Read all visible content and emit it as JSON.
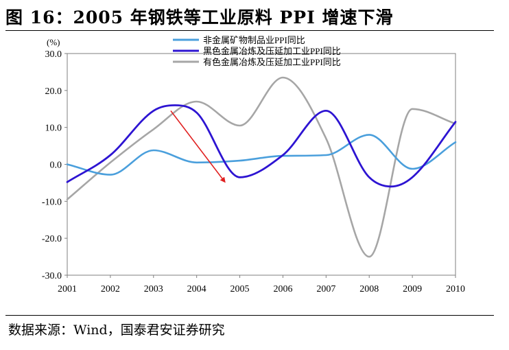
{
  "header": {
    "title": "图 16：2005 年钢铁等工业原料 PPI 增速下滑"
  },
  "footer": {
    "source": "数据来源：Wind，国泰君安证券研究"
  },
  "chart_data": {
    "type": "line",
    "title": "图 16：2005 年钢铁等工业原料 PPI 增速下滑",
    "ylabel": "(%)",
    "xlabel": "",
    "ylim": [
      -30,
      30
    ],
    "y_ticks": [
      30,
      20,
      10,
      0,
      -10,
      -20,
      -30
    ],
    "y_tick_labels": [
      "30.0",
      "20.0",
      "10.0",
      "0.0",
      "-10.0",
      "-20.0",
      "-30.0"
    ],
    "x_ticks": [
      2001,
      2002,
      2003,
      2004,
      2005,
      2006,
      2007,
      2008,
      2009,
      2010
    ],
    "x_tick_labels": [
      "2001",
      "2002",
      "2003",
      "2004",
      "2005",
      "2006",
      "2007",
      "2008",
      "2009",
      "2010"
    ],
    "legend_position": "top",
    "grid": false,
    "series": [
      {
        "name": "非金属矿物制品业PPI同比",
        "color": "#4a9fdc",
        "x": [
          2001,
          2002,
          2003,
          2004,
          2005,
          2006,
          2007,
          2008,
          2009,
          2010
        ],
        "values": [
          0.0,
          -2.8,
          3.8,
          0.5,
          1.0,
          2.3,
          2.5,
          8.0,
          -1.2,
          6.0
        ]
      },
      {
        "name": "黑色金属冶炼及压延加工业PPI同比",
        "color": "#2d14d2",
        "x": [
          2001,
          2002,
          2003,
          2003.5,
          2004,
          2005,
          2006,
          2007,
          2008,
          2008.5,
          2009,
          2010
        ],
        "values": [
          -4.8,
          2.5,
          14.5,
          16.0,
          14.0,
          -3.5,
          2.5,
          14.5,
          -3.5,
          -6.0,
          -3.5,
          11.5
        ]
      },
      {
        "name": "有色金属冶炼及压延加工业PPI同比",
        "color": "#a6a6a6",
        "x": [
          2001,
          2002,
          2003,
          2004,
          2005,
          2006,
          2007,
          2008,
          2009,
          2010
        ],
        "values": [
          -9.5,
          0.5,
          9.5,
          17.0,
          10.5,
          23.5,
          7.0,
          -25.0,
          15.0,
          11.0
        ]
      }
    ],
    "annotations": [
      {
        "type": "arrow",
        "color": "#e02020",
        "from": [
          2003.4,
          14.5
        ],
        "to": [
          2004.65,
          -4.7
        ]
      }
    ]
  }
}
